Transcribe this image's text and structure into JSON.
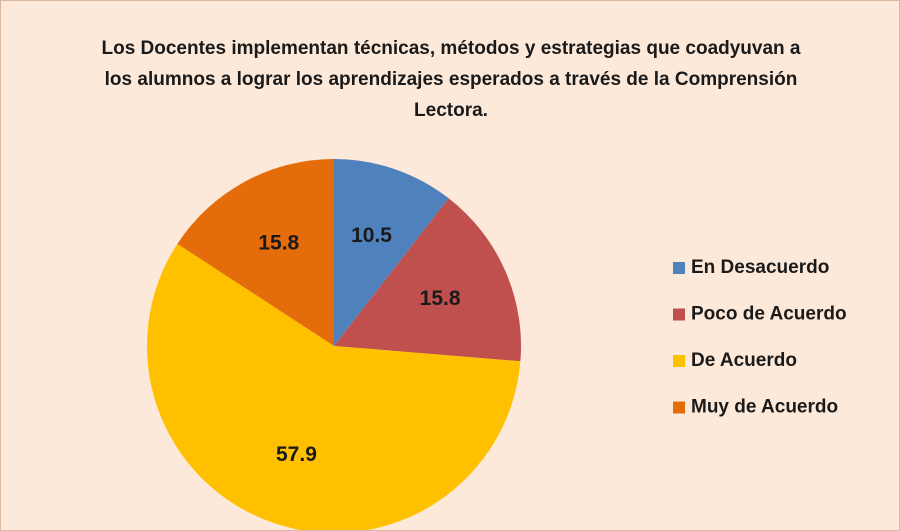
{
  "chart_data": {
    "type": "pie",
    "title": "Los Docentes implementan técnicas, métodos y estrategias que coadyuvan a los alumnos a lograr los aprendizajes esperados a través de la Comprensión Lectora.",
    "categories": [
      "En Desacuerdo",
      "Poco de Acuerdo",
      "De Acuerdo",
      "Muy de Acuerdo"
    ],
    "values": [
      10.5,
      15.8,
      57.9,
      15.8
    ],
    "colors": [
      "#4f81bd",
      "#c0504d",
      "#ffc000",
      "#e46c0a"
    ],
    "legend": "right"
  }
}
